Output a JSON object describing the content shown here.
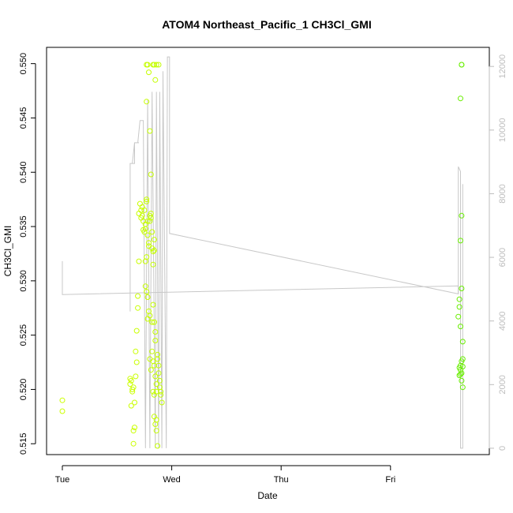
{
  "chart_data": {
    "type": "scatter",
    "title": "ATOM4 Northeast_Pacific_1 CH3Cl_GMI",
    "xlabel": "Date",
    "ylabel": "CH3Cl_GMI",
    "x_ticks": [
      "Tue",
      "Wed",
      "Thu",
      "Fri"
    ],
    "x_unit": "days since Tuesday 00:00",
    "xlim": [
      -0.1,
      3.8
    ],
    "ylim": [
      0.514,
      0.5515
    ],
    "y_ticks": [
      0.515,
      0.52,
      0.525,
      0.53,
      0.535,
      0.54,
      0.545,
      0.55
    ],
    "y_tick_labels": [
      "0.515",
      "0.520",
      "0.525",
      "0.530",
      "0.535",
      "0.540",
      "0.545",
      "0.550"
    ],
    "y2lim": [
      -200,
      12600
    ],
    "y2_ticks": [
      0,
      2000,
      4000,
      6000,
      8000,
      10000,
      12000
    ],
    "y2_tick_labels": [
      "0",
      "2000",
      "4000",
      "6000",
      "8000",
      "10000",
      "12000"
    ],
    "grid": false,
    "series": [
      {
        "kind": "points",
        "marker": "open-circle",
        "color_scale": [
          "#ccff00",
          "#66ee00"
        ],
        "points": [
          [
            0.0,
            0.519
          ],
          [
            0.0,
            0.518
          ],
          [
            0.62,
            0.521
          ],
          [
            0.62,
            0.5205
          ],
          [
            0.63,
            0.5208
          ],
          [
            0.64,
            0.52
          ],
          [
            0.64,
            0.5198
          ],
          [
            0.63,
            0.5185
          ],
          [
            0.65,
            0.5202
          ],
          [
            0.66,
            0.5188
          ],
          [
            0.66,
            0.5165
          ],
          [
            0.65,
            0.5162
          ],
          [
            0.65,
            0.515
          ],
          [
            0.67,
            0.5212
          ],
          [
            0.67,
            0.5235
          ],
          [
            0.68,
            0.5225
          ],
          [
            0.68,
            0.5254
          ],
          [
            0.69,
            0.5275
          ],
          [
            0.69,
            0.5286
          ],
          [
            0.7,
            0.5318
          ],
          [
            0.7,
            0.5362
          ],
          [
            0.71,
            0.5371
          ],
          [
            0.72,
            0.5365
          ],
          [
            0.72,
            0.5358
          ],
          [
            0.73,
            0.536
          ],
          [
            0.73,
            0.5368
          ],
          [
            0.74,
            0.5355
          ],
          [
            0.74,
            0.5347
          ],
          [
            0.75,
            0.5345
          ],
          [
            0.75,
            0.5365
          ],
          [
            0.76,
            0.5352
          ],
          [
            0.76,
            0.5348
          ],
          [
            0.77,
            0.5373
          ],
          [
            0.77,
            0.5375
          ],
          [
            0.78,
            0.5355
          ],
          [
            0.78,
            0.5342
          ],
          [
            0.79,
            0.5335
          ],
          [
            0.79,
            0.5332
          ],
          [
            0.8,
            0.5355
          ],
          [
            0.8,
            0.536
          ],
          [
            0.81,
            0.5362
          ],
          [
            0.81,
            0.5358
          ],
          [
            0.82,
            0.5345
          ],
          [
            0.82,
            0.533
          ],
          [
            0.83,
            0.5327
          ],
          [
            0.83,
            0.5315
          ],
          [
            0.84,
            0.5338
          ],
          [
            0.84,
            0.5328
          ],
          [
            0.76,
            0.5318
          ],
          [
            0.77,
            0.5322
          ],
          [
            0.76,
            0.5295
          ],
          [
            0.77,
            0.529
          ],
          [
            0.78,
            0.5285
          ],
          [
            0.79,
            0.5272
          ],
          [
            0.8,
            0.5268
          ],
          [
            0.82,
            0.5262
          ],
          [
            0.83,
            0.5278
          ],
          [
            0.84,
            0.5262
          ],
          [
            0.85,
            0.5253
          ],
          [
            0.85,
            0.5245
          ],
          [
            0.78,
            0.5265
          ],
          [
            0.8,
            0.5228
          ],
          [
            0.81,
            0.5218
          ],
          [
            0.82,
            0.5235
          ],
          [
            0.83,
            0.5226
          ],
          [
            0.84,
            0.5222
          ],
          [
            0.85,
            0.5212
          ],
          [
            0.86,
            0.5205
          ],
          [
            0.86,
            0.5198
          ],
          [
            0.87,
            0.5232
          ],
          [
            0.87,
            0.5228
          ],
          [
            0.88,
            0.5222
          ],
          [
            0.88,
            0.5215
          ],
          [
            0.89,
            0.5208
          ],
          [
            0.89,
            0.5202
          ],
          [
            0.9,
            0.5198
          ],
          [
            0.9,
            0.5195
          ],
          [
            0.91,
            0.5188
          ],
          [
            0.84,
            0.5175
          ],
          [
            0.85,
            0.5168
          ],
          [
            0.86,
            0.5162
          ],
          [
            0.87,
            0.5148
          ],
          [
            0.86,
            0.5172
          ],
          [
            0.83,
            0.5198
          ],
          [
            0.84,
            0.5195
          ],
          [
            0.77,
            0.5465
          ],
          [
            0.8,
            0.5438
          ],
          [
            0.81,
            0.5398
          ],
          [
            0.85,
            0.5485
          ],
          [
            0.79,
            0.5492
          ],
          [
            0.77,
            0.5499
          ],
          [
            0.78,
            0.5499
          ],
          [
            0.83,
            0.5499
          ],
          [
            0.84,
            0.5499
          ],
          [
            0.86,
            0.5499
          ],
          [
            0.88,
            0.5499
          ],
          [
            3.65,
            0.5499
          ],
          [
            3.65,
            0.5499
          ],
          [
            3.64,
            0.5468
          ],
          [
            3.65,
            0.536
          ],
          [
            3.64,
            0.5337
          ],
          [
            3.65,
            0.5293
          ],
          [
            3.63,
            0.5283
          ],
          [
            3.63,
            0.5276
          ],
          [
            3.62,
            0.5267
          ],
          [
            3.64,
            0.5258
          ],
          [
            3.66,
            0.5244
          ],
          [
            3.66,
            0.5228
          ],
          [
            3.65,
            0.5226
          ],
          [
            3.64,
            0.5222
          ],
          [
            3.64,
            0.5218
          ],
          [
            3.65,
            0.5215
          ],
          [
            3.66,
            0.5221
          ],
          [
            3.63,
            0.522
          ],
          [
            3.64,
            0.5214
          ],
          [
            3.65,
            0.5208
          ],
          [
            3.66,
            0.5202
          ],
          [
            3.63,
            0.5213
          ]
        ]
      },
      {
        "kind": "line",
        "axis": "right",
        "color": "#c8c8c8",
        "points": [
          [
            0.0,
            5880
          ],
          [
            0.0,
            4830
          ],
          [
            3.62,
            5100
          ],
          [
            3.62,
            4850
          ],
          [
            0.98,
            6750
          ],
          [
            0.98,
            12300
          ],
          [
            0.96,
            12300
          ],
          [
            0.95,
            0
          ],
          [
            0.92,
            11850
          ],
          [
            0.91,
            0
          ],
          [
            0.89,
            11200
          ],
          [
            0.88,
            0
          ],
          [
            0.86,
            11200
          ],
          [
            0.85,
            0
          ],
          [
            0.82,
            11200
          ],
          [
            0.8,
            0
          ],
          [
            0.78,
            10950
          ],
          [
            0.76,
            0
          ],
          [
            0.74,
            10300
          ],
          [
            0.71,
            10300
          ],
          [
            0.69,
            9600
          ],
          [
            0.66,
            9600
          ],
          [
            0.64,
            8950
          ],
          [
            0.62,
            8950
          ],
          [
            0.62,
            4300
          ],
          [
            0.62,
            4300
          ],
          [
            0.62,
            8950
          ],
          [
            0.66,
            8950
          ],
          [
            0.66,
            9600
          ],
          [
            0.7,
            9600
          ]
        ],
        "right_segment": [
          [
            3.62,
            4850
          ],
          [
            3.62,
            8850
          ],
          [
            3.64,
            8700
          ],
          [
            3.64,
            0
          ],
          [
            3.66,
            0
          ],
          [
            3.66,
            8300
          ]
        ]
      }
    ]
  }
}
